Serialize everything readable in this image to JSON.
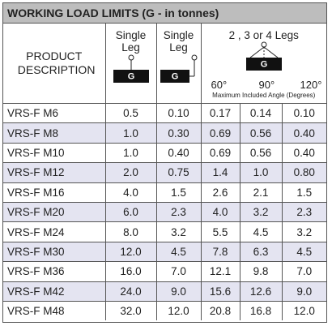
{
  "title": "WORKING LOAD LIMITS (G - in tonnes)",
  "header": {
    "product": "PRODUCT DESCRIPTION",
    "single_leg_1": "Single Leg",
    "single_leg_2": "Single Leg",
    "multi_legs": "2 , 3 or 4 Legs",
    "icon_labels": [
      "G",
      "G",
      "G"
    ],
    "angles": [
      "60°",
      "90°",
      "120°"
    ],
    "angle_caption": "Maximum Included Angle (Degrees)"
  },
  "table": {
    "rows": [
      [
        "VRS-F M6",
        "0.5",
        "0.10",
        "0.17",
        "0.14",
        "0.10"
      ],
      [
        "VRS-F M8",
        "1.0",
        "0.30",
        "0.69",
        "0.56",
        "0.40"
      ],
      [
        "VRS-F M10",
        "1.0",
        "0.40",
        "0.69",
        "0.56",
        "0.40"
      ],
      [
        "VRS-F M12",
        "2.0",
        "0.75",
        "1.4",
        "1.0",
        "0.80"
      ],
      [
        "VRS-F M16",
        "4.0",
        "1.5",
        "2.6",
        "2.1",
        "1.5"
      ],
      [
        "VRS-F M20",
        "6.0",
        "2.3",
        "4.0",
        "3.2",
        "2.3"
      ],
      [
        "VRS-F M24",
        "8.0",
        "3.2",
        "5.5",
        "4.5",
        "3.2"
      ],
      [
        "VRS-F M30",
        "12.0",
        "4.5",
        "7.8",
        "6.3",
        "4.5"
      ],
      [
        "VRS-F M36",
        "16.0",
        "7.0",
        "12.1",
        "9.8",
        "7.0"
      ],
      [
        "VRS-F M42",
        "24.0",
        "9.0",
        "15.6",
        "12.6",
        "9.0"
      ],
      [
        "VRS-F M48",
        "32.0",
        "12.0",
        "20.8",
        "16.8",
        "12.0"
      ]
    ]
  }
}
